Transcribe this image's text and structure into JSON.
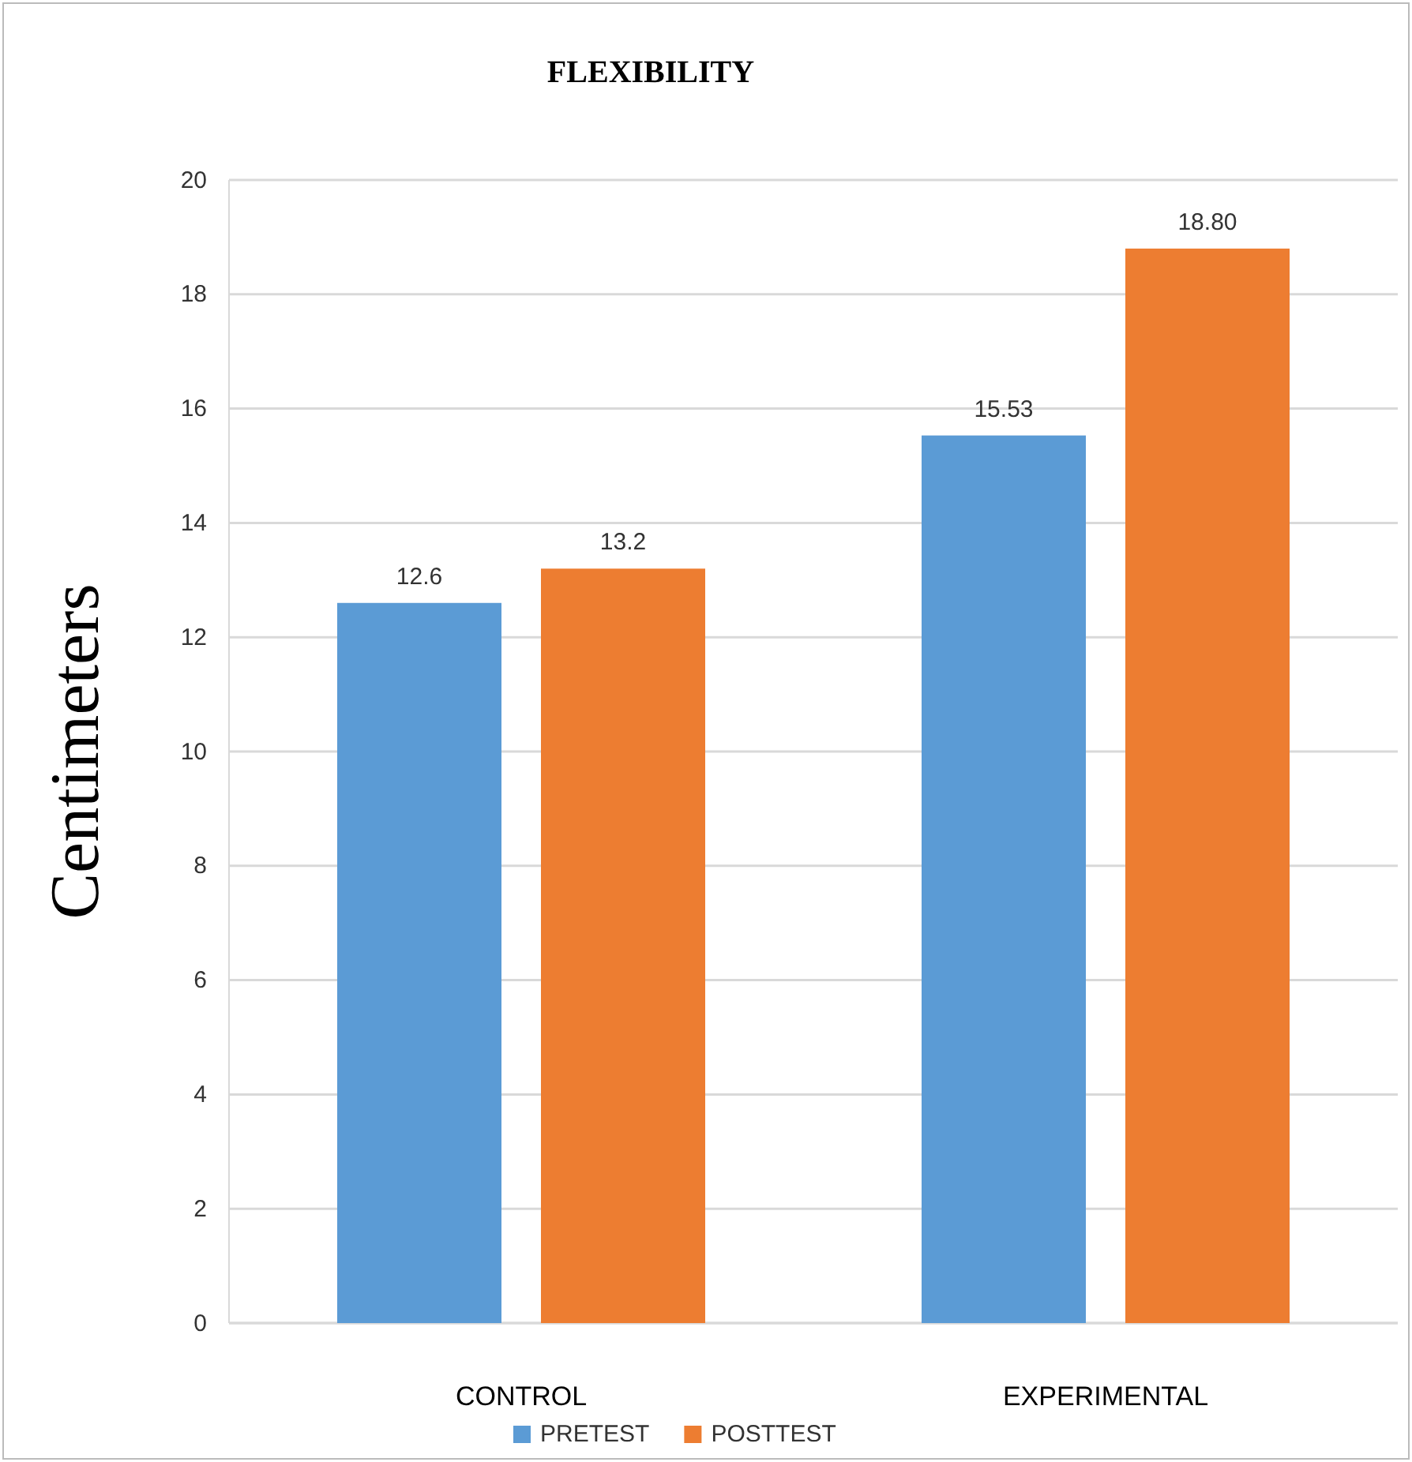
{
  "chart_data": {
    "type": "bar",
    "title": "FLEXIBILITY",
    "ylabel": "Centimeters",
    "categories": [
      "CONTROL",
      "EXPERIMENTAL"
    ],
    "series": [
      {
        "name": "PRETEST",
        "color": "#5b9bd5",
        "values": [
          12.6,
          15.53
        ],
        "value_labels": [
          "12.6",
          "15.53"
        ]
      },
      {
        "name": "POSTTEST",
        "color": "#ed7d31",
        "values": [
          13.2,
          18.8
        ],
        "value_labels": [
          "13.2",
          "18.80"
        ]
      }
    ],
    "ylim": [
      0,
      20
    ],
    "yticks": [
      0,
      2,
      4,
      6,
      8,
      10,
      12,
      14,
      16,
      18,
      20
    ],
    "grid": "y",
    "legend": "bottom"
  }
}
